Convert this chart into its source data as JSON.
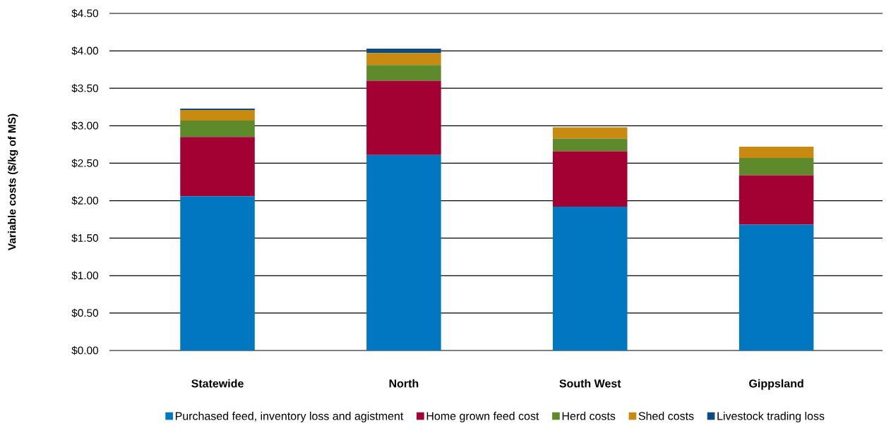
{
  "chart_data": {
    "type": "bar",
    "stacked": true,
    "ylabel": "Variable costs ($/kg of MS)",
    "categories": [
      "Statewide",
      "North",
      "South West",
      "Gippsland"
    ],
    "series": [
      {
        "name": "Purchased feed, inventory loss and agistment",
        "color": "#0077c0",
        "values": [
          2.06,
          2.61,
          1.92,
          1.68
        ]
      },
      {
        "name": "Home grown feed cost",
        "color": "#a30033",
        "values": [
          0.79,
          0.99,
          0.74,
          0.66
        ]
      },
      {
        "name": "Herd costs",
        "color": "#5e8a2b",
        "values": [
          0.22,
          0.21,
          0.17,
          0.23
        ]
      },
      {
        "name": "Shed costs",
        "color": "#c98a12",
        "values": [
          0.14,
          0.16,
          0.15,
          0.15
        ]
      },
      {
        "name": "Livestock trading loss",
        "color": "#0c4b82",
        "values": [
          0.02,
          0.06,
          0,
          0
        ]
      }
    ],
    "ylim": [
      0,
      4.5
    ],
    "yticks": [
      {
        "value": 0,
        "label": "$0.00"
      },
      {
        "value": 0.5,
        "label": "$0.50"
      },
      {
        "value": 1,
        "label": "$1.00"
      },
      {
        "value": 1.5,
        "label": "$1.50"
      },
      {
        "value": 2,
        "label": "$2.00"
      },
      {
        "value": 2.5,
        "label": "$2.50"
      },
      {
        "value": 3,
        "label": "$3.00"
      },
      {
        "value": 3.5,
        "label": "$3.50"
      },
      {
        "value": 4,
        "label": "$4.00"
      },
      {
        "value": 4.5,
        "label": "$4.50"
      }
    ],
    "grid": "y",
    "legend": "bottom"
  }
}
